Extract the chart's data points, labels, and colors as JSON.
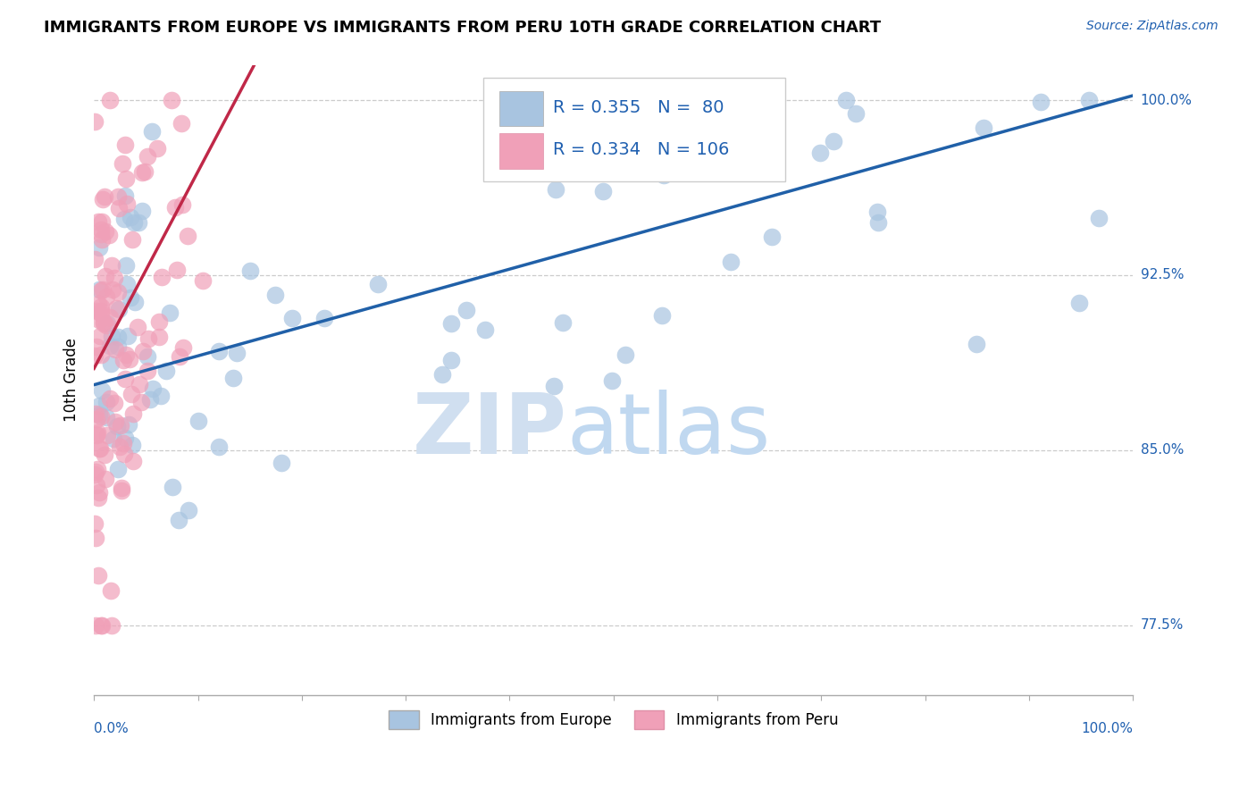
{
  "title": "IMMIGRANTS FROM EUROPE VS IMMIGRANTS FROM PERU 10TH GRADE CORRELATION CHART",
  "source_text": "Source: ZipAtlas.com",
  "ylabel": "10th Grade",
  "y_ticks": [
    77.5,
    85.0,
    92.5,
    100.0
  ],
  "legend_blue_r": "R = 0.355",
  "legend_blue_n": "N =  80",
  "legend_pink_r": "R = 0.334",
  "legend_pink_n": "N = 106",
  "legend_label_blue": "Immigrants from Europe",
  "legend_label_pink": "Immigrants from Peru",
  "blue_color": "#a8c4e0",
  "blue_edge_color": "#7aaed0",
  "pink_color": "#f0a0b8",
  "pink_edge_color": "#e080a0",
  "trend_blue_color": "#2060a8",
  "trend_pink_color": "#c02848",
  "watermark_zip_color": "#d0dff0",
  "watermark_atlas_color": "#c0d8f0",
  "blue_trend_x0": 0,
  "blue_trend_y0": 87.8,
  "blue_trend_x1": 100,
  "blue_trend_y1": 100.2,
  "pink_trend_x0": 0,
  "pink_trend_y0": 88.5,
  "pink_trend_x1": 16,
  "pink_trend_y1": 102.0,
  "x_min": 0,
  "x_max": 100,
  "y_min": 74.5,
  "y_max": 101.5
}
